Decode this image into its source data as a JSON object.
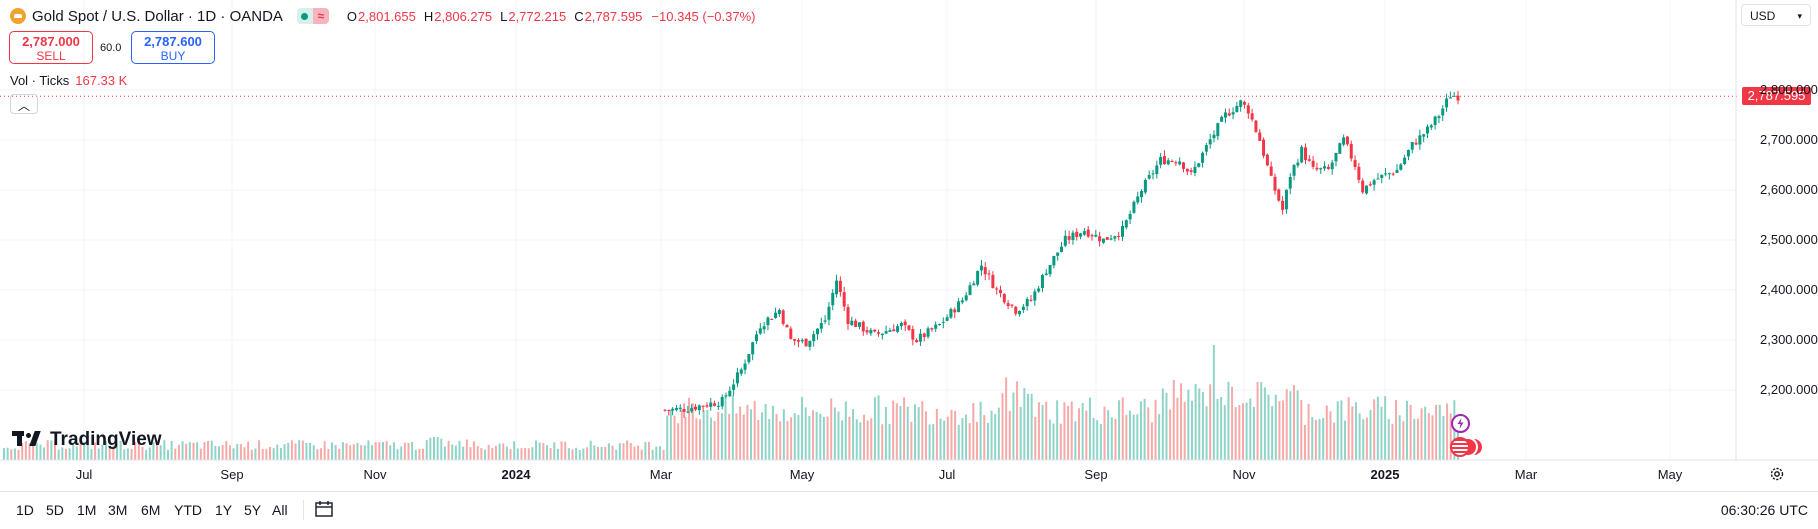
{
  "header": {
    "title": "Gold Spot / U.S. Dollar · 1D · OANDA",
    "ohlc": [
      {
        "k": "O",
        "v": "2,801.655"
      },
      {
        "k": "H",
        "v": "2,806.275"
      },
      {
        "k": "L",
        "v": "2,772.215"
      },
      {
        "k": "C",
        "v": "2,787.595"
      }
    ],
    "change": "−10.345 (−0.37%)"
  },
  "trade": {
    "sell_price": "2,787.000",
    "sell_label": "SELL",
    "spread": "60.0",
    "buy_price": "2,787.600",
    "buy_label": "BUY"
  },
  "volume": {
    "label": "Vol · Ticks",
    "value": "167.33 K"
  },
  "currency": "USD",
  "brand": "TradingView",
  "last_price_label": "2,787.595",
  "bottom_bar": {
    "ranges": [
      "1D",
      "5D",
      "1M",
      "3M",
      "6M",
      "YTD",
      "1Y",
      "5Y",
      "All"
    ],
    "time": "06:30:26 UTC"
  },
  "colors": {
    "up": "#089981",
    "down": "#f23645",
    "up_vol": "#8fd4c8",
    "down_vol": "#f7a9a7"
  },
  "chart_data": {
    "type": "candlestick",
    "symbol": "XAUUSD",
    "interval": "1D",
    "y_ticks": [
      "2,200.000",
      "2,300.000",
      "2,400.000",
      "2,500.000",
      "2,600.000",
      "2,700.000",
      "2,800.000"
    ],
    "y_tick_values": [
      2200,
      2300,
      2400,
      2500,
      2600,
      2700,
      2800
    ],
    "ylim": [
      2120,
      2820
    ],
    "x_ticks": [
      {
        "label": "Jul",
        "bold": false
      },
      {
        "label": "Sep",
        "bold": false
      },
      {
        "label": "Nov",
        "bold": false
      },
      {
        "label": "2024",
        "bold": true
      },
      {
        "label": "Mar",
        "bold": false
      },
      {
        "label": "May",
        "bold": false
      },
      {
        "label": "Jul",
        "bold": false
      },
      {
        "label": "Sep",
        "bold": false
      },
      {
        "label": "Nov",
        "bold": false
      },
      {
        "label": "2025",
        "bold": true
      },
      {
        "label": "Mar",
        "bold": false
      },
      {
        "label": "May",
        "bold": false
      }
    ],
    "last_close": 2787.595,
    "price_path": [
      [
        0,
        2160
      ],
      [
        5,
        2162
      ],
      [
        10,
        2170
      ],
      [
        15,
        2178
      ],
      [
        20,
        2240
      ],
      [
        25,
        2330
      ],
      [
        30,
        2360
      ],
      [
        33,
        2300
      ],
      [
        37,
        2295
      ],
      [
        42,
        2340
      ],
      [
        45,
        2420
      ],
      [
        48,
        2340
      ],
      [
        55,
        2310
      ],
      [
        62,
        2330
      ],
      [
        66,
        2300
      ],
      [
        72,
        2330
      ],
      [
        78,
        2380
      ],
      [
        83,
        2450
      ],
      [
        87,
        2400
      ],
      [
        92,
        2360
      ],
      [
        96,
        2380
      ],
      [
        100,
        2440
      ],
      [
        105,
        2500
      ],
      [
        110,
        2520
      ],
      [
        115,
        2500
      ],
      [
        120,
        2520
      ],
      [
        125,
        2600
      ],
      [
        130,
        2660
      ],
      [
        135,
        2660
      ],
      [
        138,
        2630
      ],
      [
        143,
        2700
      ],
      [
        147,
        2750
      ],
      [
        151,
        2775
      ],
      [
        153,
        2760
      ],
      [
        156,
        2700
      ],
      [
        159,
        2620
      ],
      [
        162,
        2560
      ],
      [
        164,
        2630
      ],
      [
        167,
        2680
      ],
      [
        170,
        2640
      ],
      [
        174,
        2640
      ],
      [
        178,
        2700
      ],
      [
        181,
        2650
      ],
      [
        183,
        2600
      ],
      [
        186,
        2620
      ],
      [
        189,
        2630
      ],
      [
        192,
        2640
      ],
      [
        196,
        2690
      ],
      [
        200,
        2720
      ],
      [
        203,
        2750
      ],
      [
        206,
        2790
      ],
      [
        208,
        2788
      ]
    ]
  }
}
